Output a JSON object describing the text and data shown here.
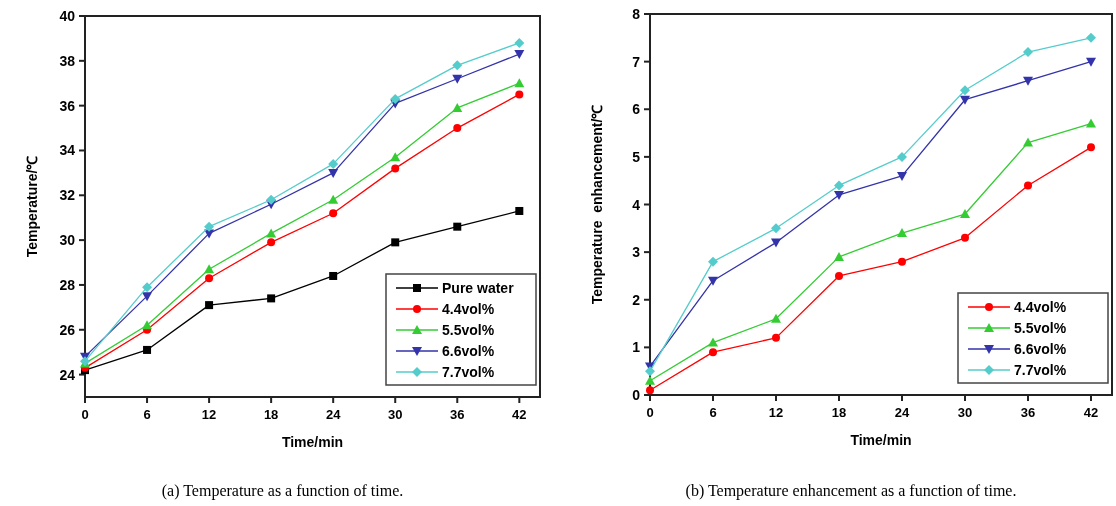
{
  "chart_data": [
    {
      "type": "line",
      "xlabel": "Time/min",
      "ylabel": "Temperature/℃",
      "x": [
        0,
        6,
        12,
        18,
        24,
        30,
        36,
        42
      ],
      "xlim": [
        0,
        44
      ],
      "xticks": [
        0,
        6,
        12,
        18,
        24,
        30,
        36,
        42
      ],
      "ylim": [
        23,
        40
      ],
      "yticks": [
        24,
        26,
        28,
        30,
        32,
        34,
        36,
        38,
        40
      ],
      "legend": "bottom right",
      "grid": false,
      "series": [
        {
          "name": "Pure water",
          "color": "#000000",
          "marker": "square",
          "values": [
            24.2,
            25.1,
            27.1,
            27.4,
            28.4,
            29.9,
            30.6,
            31.3
          ]
        },
        {
          "name": "4.4vol%",
          "color": "#ff0000",
          "marker": "circle",
          "values": [
            24.3,
            26.0,
            28.3,
            29.9,
            31.2,
            33.2,
            35.0,
            36.5
          ]
        },
        {
          "name": "5.5vol%",
          "color": "#33cc33",
          "marker": "triangle",
          "values": [
            24.5,
            26.2,
            28.7,
            30.3,
            31.8,
            33.7,
            35.9,
            37.0
          ]
        },
        {
          "name": "6.6vol%",
          "color": "#3333aa",
          "marker": "triangle-down",
          "values": [
            24.8,
            27.5,
            30.3,
            31.6,
            33.0,
            36.1,
            37.2,
            38.3
          ]
        },
        {
          "name": "7.7vol%",
          "color": "#55cccc",
          "marker": "diamond",
          "values": [
            24.6,
            27.9,
            30.6,
            31.8,
            33.4,
            36.3,
            37.8,
            38.8
          ]
        }
      ],
      "annotations": [
        "(a) Temperature as a function of time."
      ]
    },
    {
      "type": "line",
      "xlabel": "Time/min",
      "ylabel": "Temperature  enhancement/℃",
      "x": [
        0,
        6,
        12,
        18,
        24,
        30,
        36,
        42
      ],
      "xlim": [
        0,
        44
      ],
      "xticks": [
        0,
        6,
        12,
        18,
        24,
        30,
        36,
        42
      ],
      "ylim": [
        0,
        8
      ],
      "yticks": [
        0,
        1,
        2,
        3,
        4,
        5,
        6,
        7,
        8
      ],
      "legend": "bottom right",
      "grid": false,
      "series": [
        {
          "name": "4.4vol%",
          "color": "#ff0000",
          "marker": "circle",
          "values": [
            0.1,
            0.9,
            1.2,
            2.5,
            2.8,
            3.3,
            4.4,
            5.2
          ]
        },
        {
          "name": "5.5vol%",
          "color": "#33cc33",
          "marker": "triangle",
          "values": [
            0.3,
            1.1,
            1.6,
            2.9,
            3.4,
            3.8,
            5.3,
            5.7
          ]
        },
        {
          "name": "6.6vol%",
          "color": "#3333aa",
          "marker": "triangle-down",
          "values": [
            0.6,
            2.4,
            3.2,
            4.2,
            4.6,
            6.2,
            6.6,
            7.0
          ]
        },
        {
          "name": "7.7vol%",
          "color": "#55cccc",
          "marker": "diamond",
          "values": [
            0.5,
            2.8,
            3.5,
            4.4,
            5.0,
            6.4,
            7.2,
            7.5
          ]
        }
      ],
      "annotations": [
        "(b) Temperature enhancement as a function of time."
      ]
    }
  ]
}
